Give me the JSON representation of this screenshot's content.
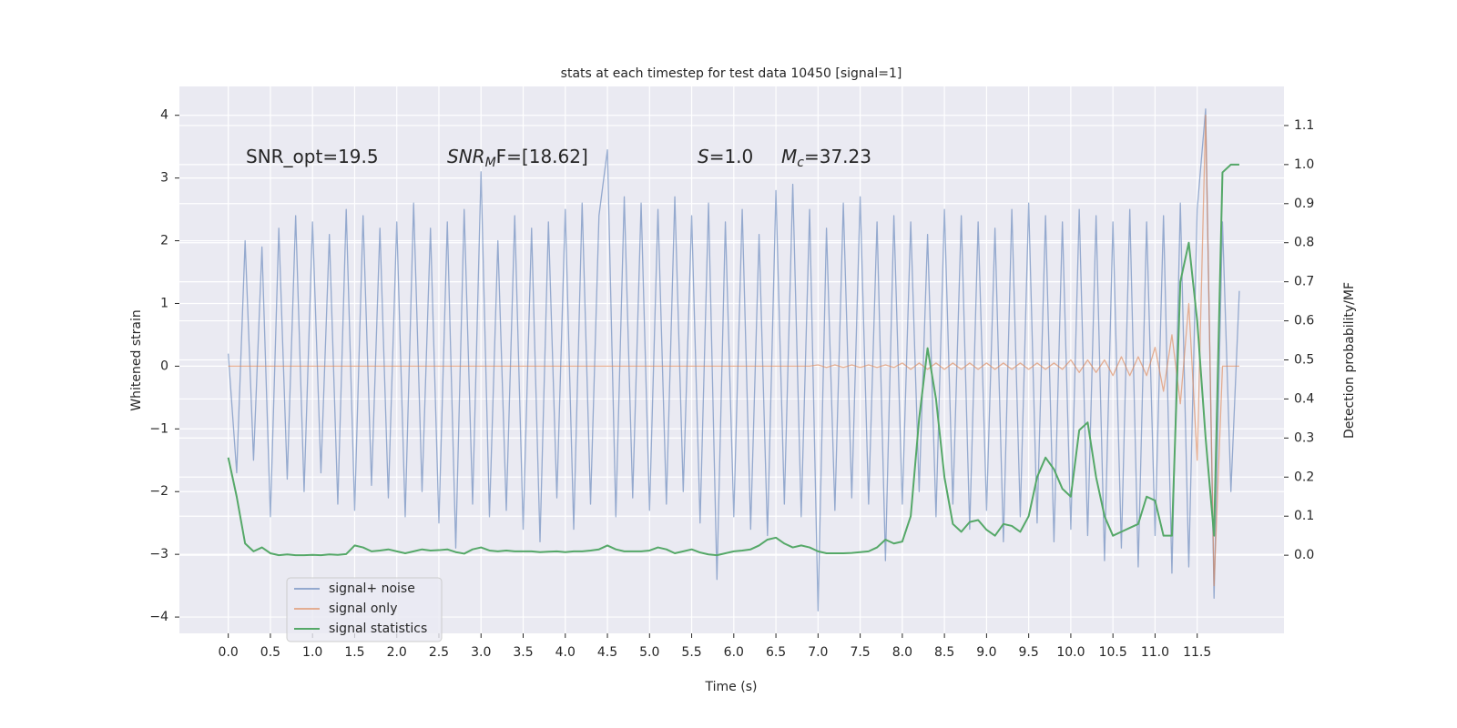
{
  "chart_data": {
    "type": "line",
    "title": "stats at each timestep for test data 10450 [signal=1]",
    "xlabel": "Time (s)",
    "ylabel": "Whitened strain",
    "y2label": "Detection probability/MF",
    "annotations": [
      {
        "main": "SNR_opt=19.5"
      },
      {
        "main": "SNR",
        "sub": "M",
        "rest": "F=[18.62]"
      },
      {
        "main": "S",
        "rest": "=1.0"
      },
      {
        "main": "M",
        "sub": "c",
        "rest": "=37.23"
      }
    ],
    "xlim": [
      -0.58,
      12.53
    ],
    "ylim": [
      -4.26,
      4.46
    ],
    "y2lim": [
      -0.2,
      1.2
    ],
    "xticks": [
      {
        "value": 0,
        "label": "0.0"
      },
      0.5,
      {
        "value": 1,
        "label": "1.0"
      },
      1.5,
      {
        "value": 2,
        "label": "2.0"
      },
      2.5,
      {
        "value": 3,
        "label": "3.0"
      },
      3.5,
      {
        "value": 4,
        "label": "4.0"
      },
      4.5,
      {
        "value": 5,
        "label": "5.0"
      },
      5.5,
      {
        "value": 6,
        "label": "6.0"
      },
      6.5,
      {
        "value": 7,
        "label": "7.0"
      },
      7.5,
      {
        "value": 8,
        "label": "8.0"
      },
      8.5,
      {
        "value": 9,
        "label": "9.0"
      },
      9.5,
      {
        "value": 10,
        "label": "10.0"
      },
      10.5,
      {
        "value": 11,
        "label": "11.0"
      },
      11.5
    ],
    "yticks": [
      {
        "value": -4,
        "label": "−4"
      },
      {
        "value": -3,
        "label": "−3"
      },
      {
        "value": -2,
        "label": "−2"
      },
      {
        "value": -1,
        "label": "−1"
      },
      0,
      1,
      2,
      3,
      4
    ],
    "y2ticks": [
      {
        "value": 0,
        "label": "0.0"
      },
      0.1,
      0.2,
      0.3,
      0.4,
      0.5,
      0.6,
      0.7,
      0.8,
      0.9,
      {
        "value": 1,
        "label": "1.0"
      },
      1.1
    ],
    "grid": true,
    "legend": "lower left",
    "x": [
      0.0,
      0.1,
      0.2,
      0.3,
      0.4,
      0.5,
      0.6,
      0.7,
      0.8,
      0.9,
      1.0,
      1.1,
      1.2,
      1.3,
      1.4,
      1.5,
      1.6,
      1.7,
      1.8,
      1.9,
      2.0,
      2.1,
      2.2,
      2.3,
      2.4,
      2.5,
      2.6,
      2.7,
      2.8,
      2.9,
      3.0,
      3.1,
      3.2,
      3.3,
      3.4,
      3.5,
      3.6,
      3.7,
      3.8,
      3.9,
      4.0,
      4.1,
      4.2,
      4.3,
      4.4,
      4.5,
      4.6,
      4.7,
      4.8,
      4.9,
      5.0,
      5.1,
      5.2,
      5.3,
      5.4,
      5.5,
      5.6,
      5.7,
      5.8,
      5.9,
      6.0,
      6.1,
      6.2,
      6.3,
      6.4,
      6.5,
      6.6,
      6.7,
      6.8,
      6.9,
      7.0,
      7.1,
      7.2,
      7.3,
      7.4,
      7.5,
      7.6,
      7.7,
      7.8,
      7.9,
      8.0,
      8.1,
      8.2,
      8.3,
      8.4,
      8.5,
      8.6,
      8.7,
      8.8,
      8.9,
      9.0,
      9.1,
      9.2,
      9.3,
      9.4,
      9.5,
      9.6,
      9.7,
      9.8,
      9.9,
      10.0,
      10.1,
      10.2,
      10.3,
      10.4,
      10.5,
      10.6,
      10.7,
      10.8,
      10.9,
      11.0,
      11.1,
      11.2,
      11.3,
      11.4,
      11.5,
      11.6,
      11.7,
      11.8,
      11.9,
      12.0
    ],
    "series": [
      {
        "name": "signal+ noise",
        "color": "#4c72b0",
        "values": [
          0.2,
          -1.7,
          2.0,
          -1.5,
          1.9,
          -2.4,
          2.2,
          -1.8,
          2.4,
          -2.0,
          2.3,
          -1.7,
          2.1,
          -2.2,
          2.5,
          -2.3,
          2.4,
          -1.9,
          2.2,
          -2.1,
          2.3,
          -2.4,
          2.6,
          -2.0,
          2.2,
          -2.5,
          2.3,
          -2.9,
          2.5,
          -2.2,
          3.1,
          -2.4,
          2.0,
          -2.3,
          2.4,
          -2.6,
          2.2,
          -2.8,
          2.3,
          -2.1,
          2.5,
          -2.6,
          2.6,
          -2.2,
          2.4,
          3.45,
          -2.4,
          2.7,
          -2.1,
          2.6,
          -2.3,
          2.5,
          -2.2,
          2.7,
          -2.0,
          2.4,
          -2.5,
          2.6,
          -3.4,
          2.3,
          -2.4,
          2.5,
          -2.6,
          2.1,
          -2.7,
          2.8,
          -2.2,
          2.9,
          -2.4,
          2.5,
          -3.9,
          2.2,
          -2.3,
          2.6,
          -2.1,
          2.7,
          -2.2,
          2.3,
          -3.1,
          2.4,
          -2.2,
          2.3,
          -2.0,
          2.1,
          -2.4,
          2.5,
          -2.2,
          2.4,
          -2.6,
          2.3,
          -2.3,
          2.2,
          -2.8,
          2.5,
          -2.4,
          2.6,
          -2.5,
          2.4,
          -2.8,
          2.3,
          -2.6,
          2.5,
          -2.7,
          2.4,
          -3.1,
          2.3,
          -2.9,
          2.5,
          -3.2,
          2.3,
          -2.7,
          2.4,
          -3.3,
          2.6,
          -3.2,
          2.5,
          4.1,
          -3.7,
          2.3,
          -2.0,
          1.2
        ]
      },
      {
        "name": "signal only",
        "color": "#dd8452",
        "values": [
          0,
          0,
          0,
          0,
          0,
          0,
          0,
          0,
          0,
          0,
          0,
          0,
          0,
          0,
          0,
          0,
          0,
          0,
          0,
          0,
          0,
          0,
          0,
          0,
          0,
          0,
          0,
          0,
          0,
          0,
          0,
          0,
          0,
          0,
          0,
          0,
          0,
          0,
          0,
          0,
          0,
          0,
          0,
          0,
          0,
          0,
          0,
          0,
          0,
          0,
          0,
          0,
          0,
          0,
          0,
          0,
          0,
          0,
          0,
          0,
          0,
          0,
          0,
          0,
          0,
          0,
          0,
          0,
          0,
          0,
          0.02,
          -0.02,
          0.02,
          -0.02,
          0.02,
          -0.02,
          0.02,
          -0.02,
          0.02,
          -0.02,
          0.05,
          -0.05,
          0.05,
          -0.05,
          0.05,
          -0.05,
          0.05,
          -0.05,
          0.05,
          -0.05,
          0.05,
          -0.05,
          0.05,
          -0.05,
          0.05,
          -0.05,
          0.05,
          -0.05,
          0.05,
          -0.05,
          0.1,
          -0.1,
          0.1,
          -0.1,
          0.1,
          -0.15,
          0.15,
          -0.15,
          0.15,
          -0.15,
          0.3,
          -0.4,
          0.5,
          -0.6,
          1.0,
          -1.5,
          4.0,
          -3.5,
          0,
          0,
          0
        ]
      },
      {
        "name": "signal statistics",
        "color": "#55a868",
        "axis": "y2",
        "values": [
          0.25,
          0.15,
          0.03,
          0.01,
          0.02,
          0.005,
          0.0,
          0.002,
          0.0,
          0.0,
          0.001,
          0.0,
          0.002,
          0.001,
          0.003,
          0.025,
          0.02,
          0.01,
          0.012,
          0.015,
          0.01,
          0.005,
          0.01,
          0.015,
          0.012,
          0.013,
          0.015,
          0.008,
          0.004,
          0.015,
          0.02,
          0.012,
          0.01,
          0.012,
          0.01,
          0.01,
          0.01,
          0.008,
          0.009,
          0.01,
          0.008,
          0.01,
          0.01,
          0.012,
          0.015,
          0.025,
          0.015,
          0.01,
          0.01,
          0.01,
          0.012,
          0.02,
          0.015,
          0.005,
          0.01,
          0.015,
          0.007,
          0.002,
          0.0,
          0.005,
          0.01,
          0.012,
          0.015,
          0.025,
          0.04,
          0.045,
          0.03,
          0.02,
          0.025,
          0.02,
          0.01,
          0.005,
          0.005,
          0.005,
          0.006,
          0.008,
          0.01,
          0.02,
          0.04,
          0.03,
          0.035,
          0.1,
          0.35,
          0.53,
          0.4,
          0.2,
          0.08,
          0.06,
          0.085,
          0.09,
          0.065,
          0.05,
          0.08,
          0.075,
          0.06,
          0.1,
          0.2,
          0.25,
          0.22,
          0.17,
          0.15,
          0.32,
          0.34,
          0.2,
          0.1,
          0.05,
          0.06,
          0.07,
          0.08,
          0.15,
          0.14,
          0.05,
          0.05,
          0.7,
          0.8,
          0.6,
          0.3,
          0.05,
          0.98,
          1.0,
          1.0
        ]
      }
    ]
  }
}
